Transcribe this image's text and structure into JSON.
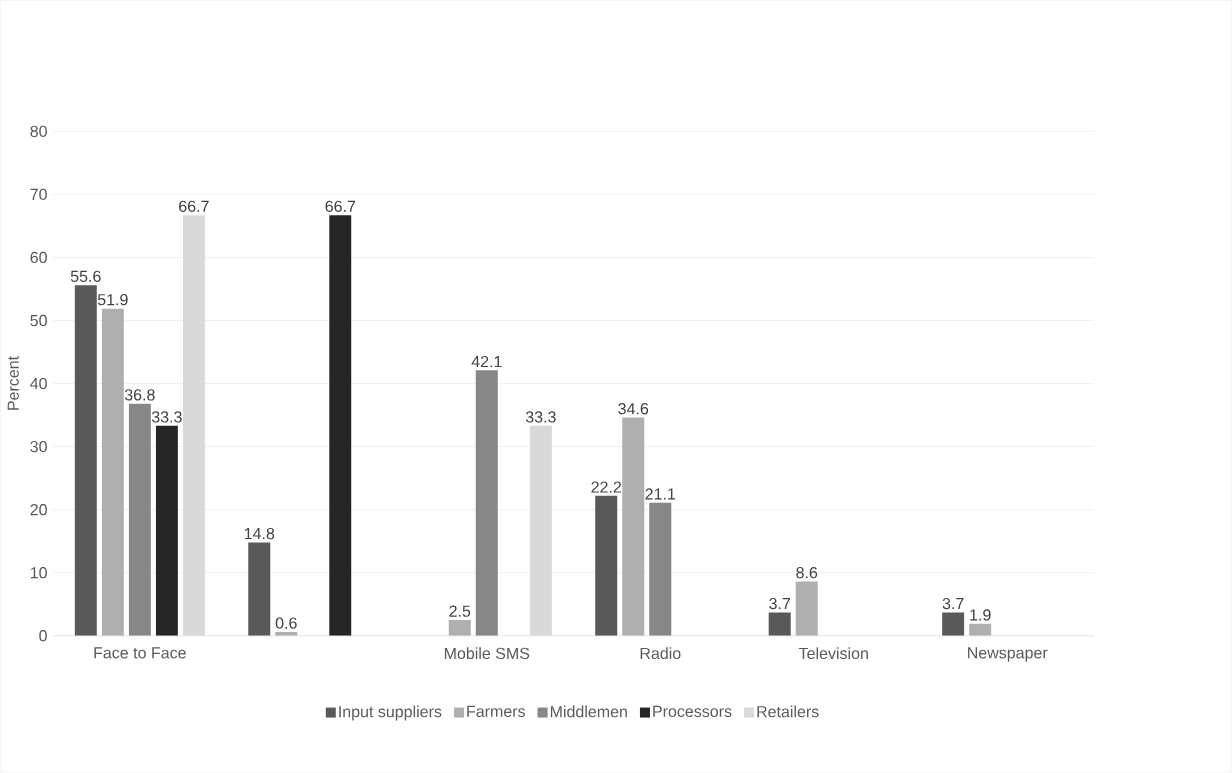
{
  "chart_data": {
    "type": "bar",
    "ylabel": "Percent",
    "categories": [
      "Face to Face",
      null,
      "Mobile SMS",
      "Radio",
      "Television",
      "Newspaper"
    ],
    "series": [
      {
        "name": "Input suppliers",
        "color": "#595959",
        "values": [
          55.6,
          14.8,
          null,
          22.2,
          3.7,
          3.7
        ]
      },
      {
        "name": "Farmers",
        "color": "#afafaf",
        "values": [
          51.9,
          0.6,
          2.5,
          34.6,
          8.6,
          1.9
        ]
      },
      {
        "name": "Middlemen",
        "color": "#878787",
        "values": [
          36.8,
          null,
          42.1,
          21.1,
          null,
          null
        ]
      },
      {
        "name": "Processors",
        "color": "#262626",
        "values": [
          33.3,
          66.7,
          null,
          null,
          null,
          null
        ]
      },
      {
        "name": "Retailers",
        "color": "#d9d9d9",
        "values": [
          66.7,
          null,
          33.3,
          null,
          null,
          null
        ]
      }
    ],
    "ylim": [
      0,
      80
    ],
    "yticks": [
      0,
      10,
      20,
      30,
      40,
      50,
      60,
      70,
      80
    ],
    "grid": "y",
    "legend": "bottom",
    "data_labels": true
  }
}
